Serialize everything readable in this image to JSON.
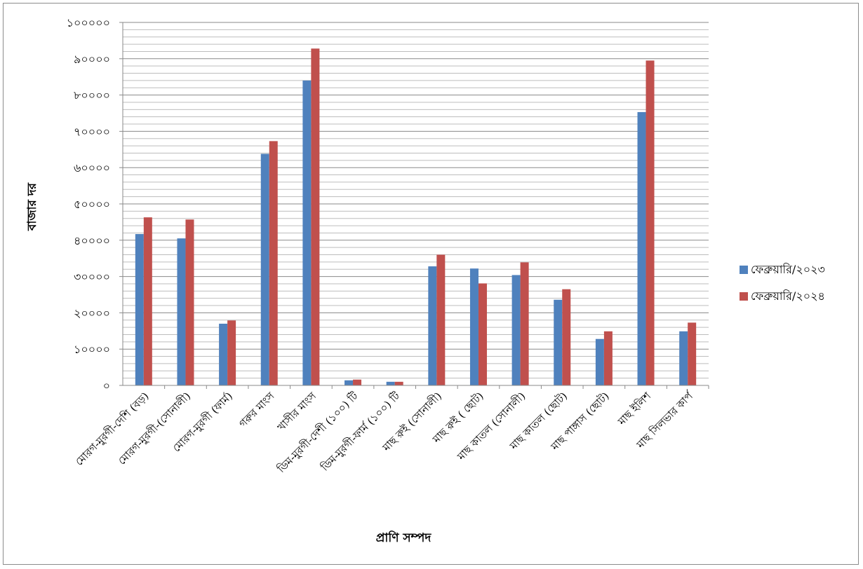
{
  "chart_data": {
    "type": "bar",
    "xlabel": "প্রাণি সম্পদ",
    "ylabel": "বাজার দর",
    "ylim": [
      0,
      100000
    ],
    "yticks": [
      0,
      10000,
      20000,
      30000,
      40000,
      50000,
      60000,
      70000,
      80000,
      90000,
      100000
    ],
    "ytick_labels": [
      "০",
      "১০০০০",
      "২০০০০",
      "৩০০০০",
      "৪০০০০",
      "৫০০০০",
      "৬০০০০",
      "৭০০০০",
      "৮০০০০",
      "৯০০০০",
      "১০০০০০"
    ],
    "grid": true,
    "legend_position": "right",
    "categories": [
      "মোরগ-মুরগী-দেশি (বড়)",
      "মোরগ-মুরগী-(সোনালী)",
      "মোরগ-মুরগী (ফার্ম)",
      "গরুর মাংস",
      "খাসীর মাংস",
      "ডিম-মুরগী-দেশী (১০০) টি",
      "ডিম-মুরগী-ফার্ম (১০০) টি",
      "মাছ রুই (সোনালী)",
      "মাছ রুই ( ছোট)",
      "মাছ কাতল (সোনালী)",
      "মাছ কাতল (ছোট)",
      "মাছ পাঙ্গাস (ছোট)",
      "মাছ ইলিশ",
      "মাছ সিলভার কার্প"
    ],
    "series": [
      {
        "name": "ফেব্রুয়ারি/২০২৩",
        "color": "#4F81BD",
        "values": [
          41700,
          40500,
          17000,
          63800,
          84000,
          1400,
          1000,
          32800,
          32200,
          30400,
          23600,
          12800,
          75300,
          14900
        ]
      },
      {
        "name": "ফেব্রুয়ারি/২০২৪",
        "color": "#C0504D",
        "values": [
          46300,
          45700,
          17900,
          67300,
          92800,
          1600,
          1000,
          36000,
          28100,
          33900,
          26500,
          14900,
          89500,
          17300
        ]
      }
    ]
  }
}
